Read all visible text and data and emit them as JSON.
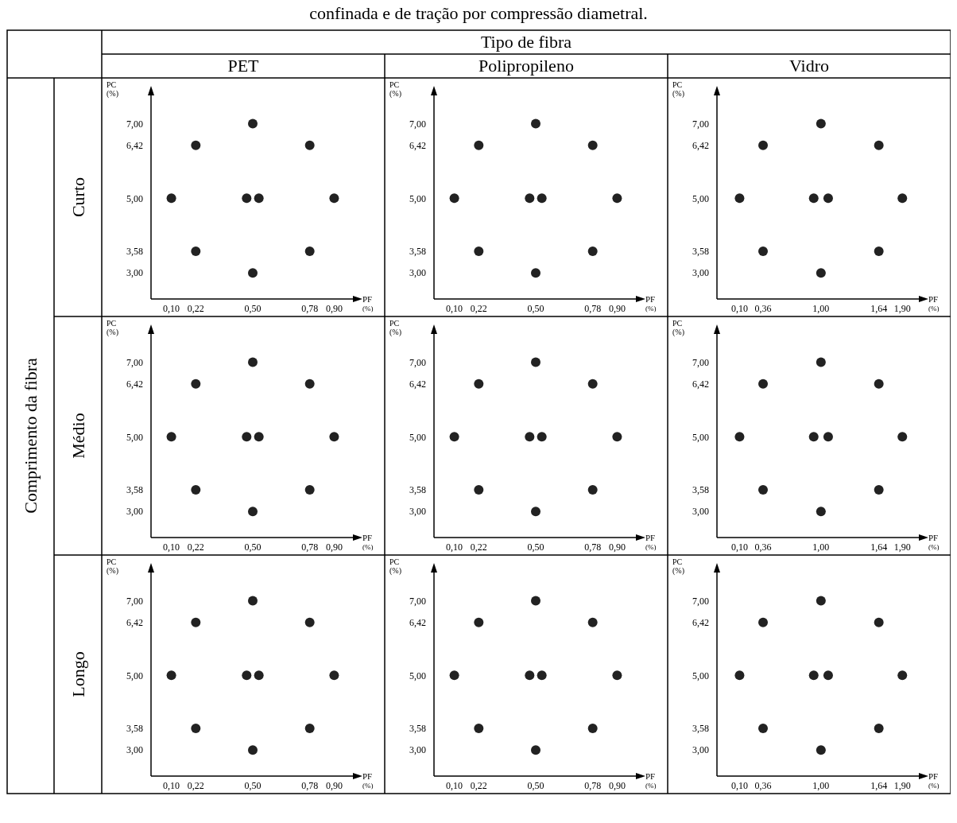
{
  "chart_data": [
    {
      "type": "scatter",
      "title": "PET",
      "xlabel": "PF (%)",
      "ylabel": "PC (%)",
      "color": "#222222",
      "marker": "circle",
      "annotations": [
        "confinada e de tração por compressão diametral.",
        "Tipo de fibra",
        "Comprimento da fibra",
        "Curto"
      ],
      "x": [
        0.5,
        0.22,
        0.78,
        0.1,
        0.47,
        0.53,
        0.9,
        0.22,
        0.78,
        0.5
      ],
      "values": [
        7,
        6.42,
        6.42,
        5,
        5,
        5,
        5,
        3.58,
        3.58,
        3
      ],
      "xlim": [
        0,
        1
      ],
      "ylim": [
        2.3,
        7.8
      ],
      "xticks": [
        {
          "value": 0.1,
          "label": "0,10"
        },
        {
          "value": 0.22,
          "label": "0,22"
        },
        {
          "value": 0.5,
          "label": "0,50"
        },
        {
          "value": 0.78,
          "label": "0,78"
        },
        {
          "value": 0.9,
          "label": "0,90"
        }
      ],
      "yticks": [
        {
          "value": 3,
          "label": "3,00"
        },
        {
          "value": 3.58,
          "label": "3,58"
        },
        {
          "value": 5,
          "label": "5,00"
        },
        {
          "value": 6.42,
          "label": "6,42"
        },
        {
          "value": 7,
          "label": "7,00"
        }
      ]
    },
    {
      "type": "scatter",
      "title": "Polipropileno",
      "xlabel": "PF (%)",
      "ylabel": "PC (%)",
      "color": "#222222",
      "marker": "circle",
      "x": [
        0.5,
        0.22,
        0.78,
        0.1,
        0.47,
        0.53,
        0.9,
        0.22,
        0.78,
        0.5
      ],
      "values": [
        7,
        6.42,
        6.42,
        5,
        5,
        5,
        5,
        3.58,
        3.58,
        3
      ],
      "xlim": [
        0,
        1
      ],
      "ylim": [
        2.3,
        7.8
      ],
      "xticks": [
        {
          "value": 0.1,
          "label": "0,10"
        },
        {
          "value": 0.22,
          "label": "0,22"
        },
        {
          "value": 0.5,
          "label": "0,50"
        },
        {
          "value": 0.78,
          "label": "0,78"
        },
        {
          "value": 0.9,
          "label": "0,90"
        }
      ],
      "yticks": [
        {
          "value": 3,
          "label": "3,00"
        },
        {
          "value": 3.58,
          "label": "3,58"
        },
        {
          "value": 5,
          "label": "5,00"
        },
        {
          "value": 6.42,
          "label": "6,42"
        },
        {
          "value": 7,
          "label": "7,00"
        }
      ]
    },
    {
      "type": "scatter",
      "title": "Vidro",
      "xlabel": "PF (%)",
      "ylabel": "PC (%)",
      "color": "#222222",
      "marker": "circle",
      "x": [
        1,
        0.36,
        1.64,
        0.1,
        0.92,
        1.08,
        1.9,
        0.36,
        1.64,
        1
      ],
      "values": [
        7,
        6.42,
        6.42,
        5,
        5,
        5,
        5,
        3.58,
        3.58,
        3
      ],
      "xlim": [
        -0.15,
        2.1
      ],
      "ylim": [
        2.3,
        7.8
      ],
      "xticks": [
        {
          "value": 0.1,
          "label": "0,10"
        },
        {
          "value": 0.36,
          "label": "0,36"
        },
        {
          "value": 1,
          "label": "1,00"
        },
        {
          "value": 1.64,
          "label": "1,64"
        },
        {
          "value": 1.9,
          "label": "1,90"
        }
      ],
      "yticks": [
        {
          "value": 3,
          "label": "3,00"
        },
        {
          "value": 3.58,
          "label": "3,58"
        },
        {
          "value": 5,
          "label": "5,00"
        },
        {
          "value": 6.42,
          "label": "6,42"
        },
        {
          "value": 7,
          "label": "7,00"
        }
      ]
    },
    {
      "type": "scatter",
      "xlabel": "PF (%)",
      "ylabel": "PC (%)",
      "color": "#222222",
      "marker": "circle",
      "annotations": [
        "Médio"
      ],
      "x": [
        0.5,
        0.22,
        0.78,
        0.1,
        0.47,
        0.53,
        0.9,
        0.22,
        0.78,
        0.5
      ],
      "values": [
        7,
        6.42,
        6.42,
        5,
        5,
        5,
        5,
        3.58,
        3.58,
        3
      ],
      "xlim": [
        0,
        1
      ],
      "ylim": [
        2.3,
        7.8
      ],
      "xticks": [
        {
          "value": 0.1,
          "label": "0,10"
        },
        {
          "value": 0.22,
          "label": "0,22"
        },
        {
          "value": 0.5,
          "label": "0,50"
        },
        {
          "value": 0.78,
          "label": "0,78"
        },
        {
          "value": 0.9,
          "label": "0,90"
        }
      ],
      "yticks": [
        {
          "value": 3,
          "label": "3,00"
        },
        {
          "value": 3.58,
          "label": "3,58"
        },
        {
          "value": 5,
          "label": "5,00"
        },
        {
          "value": 6.42,
          "label": "6,42"
        },
        {
          "value": 7,
          "label": "7,00"
        }
      ]
    },
    {
      "type": "scatter",
      "xlabel": "PF (%)",
      "ylabel": "PC (%)",
      "color": "#222222",
      "marker": "circle",
      "x": [
        0.5,
        0.22,
        0.78,
        0.1,
        0.47,
        0.53,
        0.9,
        0.22,
        0.78,
        0.5
      ],
      "values": [
        7,
        6.42,
        6.42,
        5,
        5,
        5,
        5,
        3.58,
        3.58,
        3
      ],
      "xlim": [
        0,
        1
      ],
      "ylim": [
        2.3,
        7.8
      ],
      "xticks": [
        {
          "value": 0.1,
          "label": "0,10"
        },
        {
          "value": 0.22,
          "label": "0,22"
        },
        {
          "value": 0.5,
          "label": "0,50"
        },
        {
          "value": 0.78,
          "label": "0,78"
        },
        {
          "value": 0.9,
          "label": "0,90"
        }
      ],
      "yticks": [
        {
          "value": 3,
          "label": "3,00"
        },
        {
          "value": 3.58,
          "label": "3,58"
        },
        {
          "value": 5,
          "label": "5,00"
        },
        {
          "value": 6.42,
          "label": "6,42"
        },
        {
          "value": 7,
          "label": "7,00"
        }
      ]
    },
    {
      "type": "scatter",
      "xlabel": "PF (%)",
      "ylabel": "PC (%)",
      "color": "#222222",
      "marker": "circle",
      "x": [
        1,
        0.36,
        1.64,
        0.1,
        0.92,
        1.08,
        1.9,
        0.36,
        1.64,
        1
      ],
      "values": [
        7,
        6.42,
        6.42,
        5,
        5,
        5,
        5,
        3.58,
        3.58,
        3
      ],
      "xlim": [
        -0.15,
        2.1
      ],
      "ylim": [
        2.3,
        7.8
      ],
      "xticks": [
        {
          "value": 0.1,
          "label": "0,10"
        },
        {
          "value": 0.36,
          "label": "0,36"
        },
        {
          "value": 1,
          "label": "1,00"
        },
        {
          "value": 1.64,
          "label": "1,64"
        },
        {
          "value": 1.9,
          "label": "1,90"
        }
      ],
      "yticks": [
        {
          "value": 3,
          "label": "3,00"
        },
        {
          "value": 3.58,
          "label": "3,58"
        },
        {
          "value": 5,
          "label": "5,00"
        },
        {
          "value": 6.42,
          "label": "6,42"
        },
        {
          "value": 7,
          "label": "7,00"
        }
      ]
    },
    {
      "type": "scatter",
      "xlabel": "PF (%)",
      "ylabel": "PC (%)",
      "color": "#222222",
      "marker": "circle",
      "annotations": [
        "Longo"
      ],
      "x": [
        0.5,
        0.22,
        0.78,
        0.1,
        0.47,
        0.53,
        0.9,
        0.22,
        0.78,
        0.5
      ],
      "values": [
        7,
        6.42,
        6.42,
        5,
        5,
        5,
        5,
        3.58,
        3.58,
        3
      ],
      "xlim": [
        0,
        1
      ],
      "ylim": [
        2.3,
        7.8
      ],
      "xticks": [
        {
          "value": 0.1,
          "label": "0,10"
        },
        {
          "value": 0.22,
          "label": "0,22"
        },
        {
          "value": 0.5,
          "label": "0,50"
        },
        {
          "value": 0.78,
          "label": "0,78"
        },
        {
          "value": 0.9,
          "label": "0,90"
        }
      ],
      "yticks": [
        {
          "value": 3,
          "label": "3,00"
        },
        {
          "value": 3.58,
          "label": "3,58"
        },
        {
          "value": 5,
          "label": "5,00"
        },
        {
          "value": 6.42,
          "label": "6,42"
        },
        {
          "value": 7,
          "label": "7,00"
        }
      ]
    },
    {
      "type": "scatter",
      "xlabel": "PF (%)",
      "ylabel": "PC (%)",
      "color": "#222222",
      "marker": "circle",
      "x": [
        0.5,
        0.22,
        0.78,
        0.1,
        0.47,
        0.53,
        0.9,
        0.22,
        0.78,
        0.5
      ],
      "values": [
        7,
        6.42,
        6.42,
        5,
        5,
        5,
        5,
        3.58,
        3.58,
        3
      ],
      "xlim": [
        0,
        1
      ],
      "ylim": [
        2.3,
        7.8
      ],
      "xticks": [
        {
          "value": 0.1,
          "label": "0,10"
        },
        {
          "value": 0.22,
          "label": "0,22"
        },
        {
          "value": 0.5,
          "label": "0,50"
        },
        {
          "value": 0.78,
          "label": "0,78"
        },
        {
          "value": 0.9,
          "label": "0,90"
        }
      ],
      "yticks": [
        {
          "value": 3,
          "label": "3,00"
        },
        {
          "value": 3.58,
          "label": "3,58"
        },
        {
          "value": 5,
          "label": "5,00"
        },
        {
          "value": 6.42,
          "label": "6,42"
        },
        {
          "value": 7,
          "label": "7,00"
        }
      ]
    },
    {
      "type": "scatter",
      "xlabel": "PF (%)",
      "ylabel": "PC (%)",
      "color": "#222222",
      "marker": "circle",
      "x": [
        1,
        0.36,
        1.64,
        0.1,
        0.92,
        1.08,
        1.9,
        0.36,
        1.64,
        1
      ],
      "values": [
        7,
        6.42,
        6.42,
        5,
        5,
        5,
        5,
        3.58,
        3.58,
        3
      ],
      "xlim": [
        -0.15,
        2.1
      ],
      "ylim": [
        2.3,
        7.8
      ],
      "xticks": [
        {
          "value": 0.1,
          "label": "0,10"
        },
        {
          "value": 0.36,
          "label": "0,36"
        },
        {
          "value": 1,
          "label": "1,00"
        },
        {
          "value": 1.64,
          "label": "1,64"
        },
        {
          "value": 1.9,
          "label": "1,90"
        }
      ],
      "yticks": [
        {
          "value": 3,
          "label": "3,00"
        },
        {
          "value": 3.58,
          "label": "3,58"
        },
        {
          "value": 5,
          "label": "5,00"
        },
        {
          "value": 6.42,
          "label": "6,42"
        },
        {
          "value": 7,
          "label": "7,00"
        }
      ]
    }
  ]
}
